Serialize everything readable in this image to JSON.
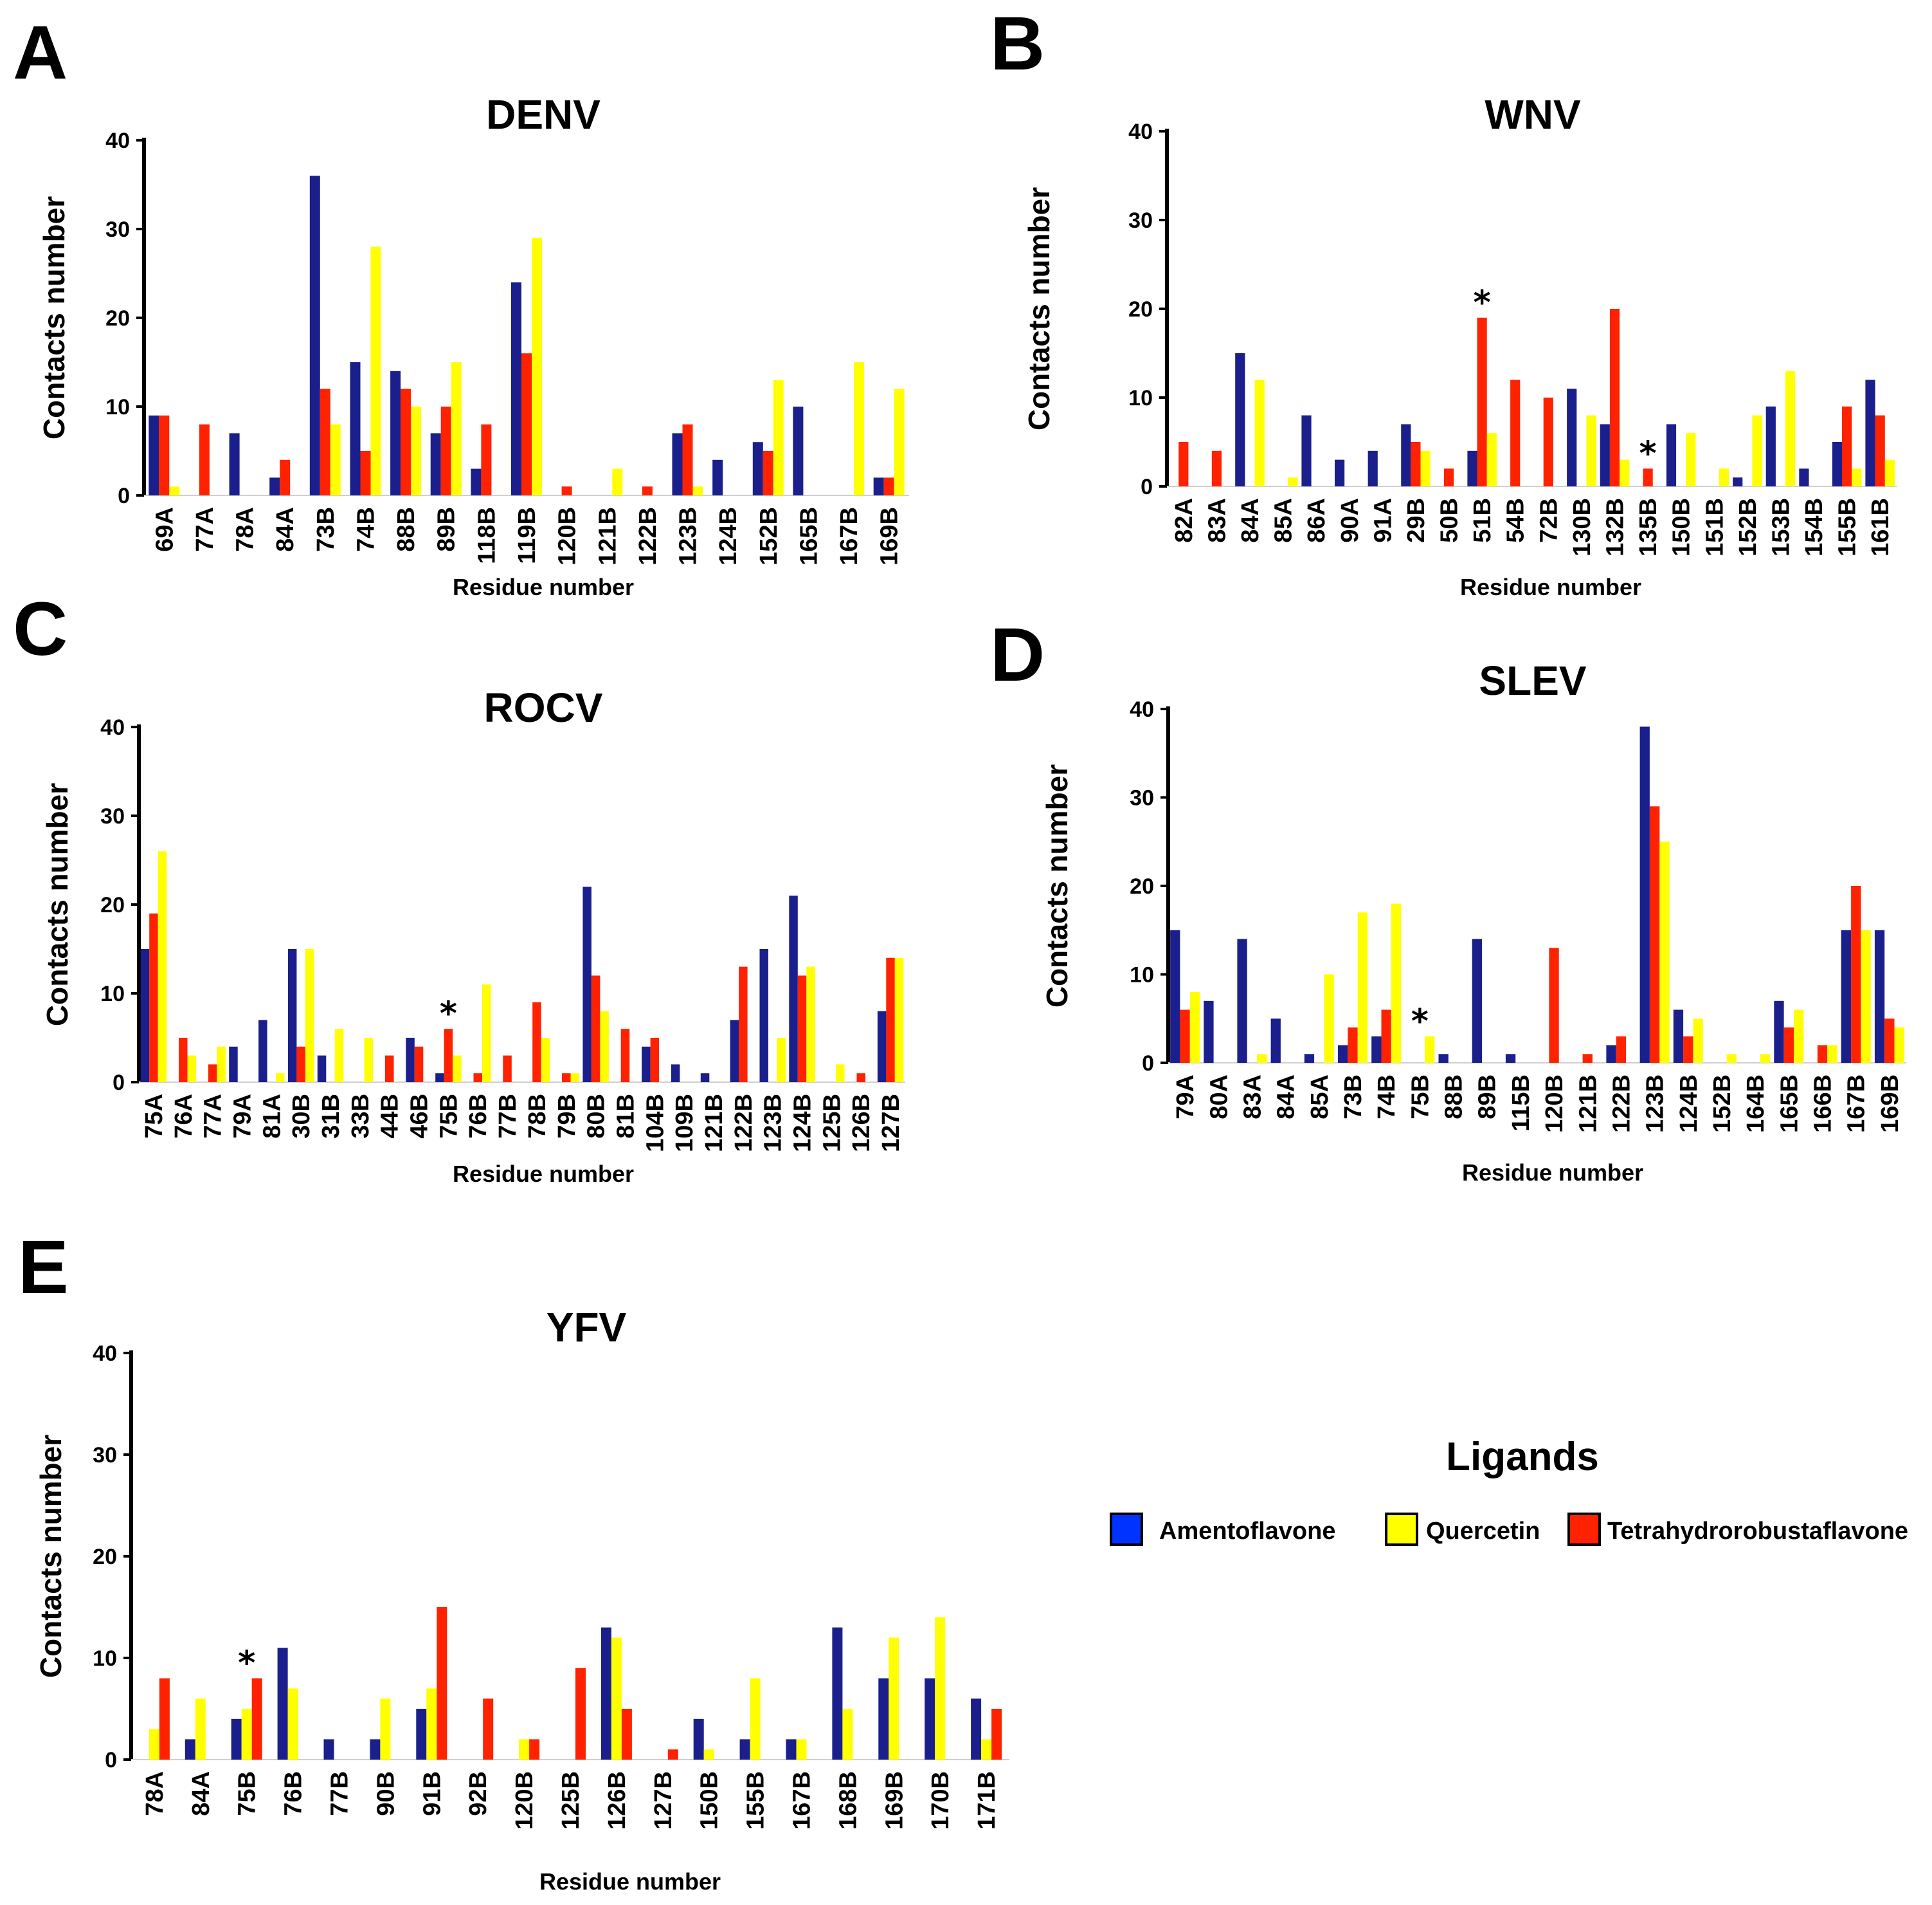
{
  "figure": {
    "legend": {
      "title": "Ligands",
      "items": [
        {
          "name": "Amentoflavone",
          "color": "#0033ff"
        },
        {
          "name": "Quercetin",
          "color": "#ffff00"
        },
        {
          "name": "Tetrahydrorobustaflavone",
          "color": "#ff2200"
        }
      ]
    }
  },
  "chart_data": [
    {
      "panel": "A",
      "type": "bar",
      "title": "DENV",
      "xlabel": "Residue number",
      "ylabel": "Contacts number",
      "ylim": [
        0,
        40
      ],
      "yticks": [
        0,
        10,
        20,
        30,
        40
      ],
      "categories": [
        "69A",
        "77A",
        "78A",
        "84A",
        "73B",
        "74B",
        "88B",
        "89B",
        "118B",
        "119B",
        "120B",
        "121B",
        "122B",
        "123B",
        "124B",
        "152B",
        "165B",
        "167B",
        "169B"
      ],
      "series_order": [
        "Amentoflavone",
        "Tetrahydrorobustaflavone",
        "Quercetin"
      ],
      "series": [
        {
          "name": "Amentoflavone",
          "color": "#1a1f8c",
          "values": [
            9,
            0,
            7,
            2,
            36,
            15,
            14,
            7,
            3,
            24,
            0,
            0,
            0,
            7,
            4,
            6,
            10,
            0,
            2
          ]
        },
        {
          "name": "Tetrahydrorobustaflavone",
          "color": "#ff2200",
          "values": [
            9,
            8,
            0,
            4,
            12,
            5,
            12,
            10,
            8,
            16,
            1,
            0,
            1,
            8,
            0,
            5,
            0,
            0,
            2
          ]
        },
        {
          "name": "Quercetin",
          "color": "#ffff00",
          "values": [
            1,
            0,
            0,
            0,
            8,
            28,
            10,
            15,
            0,
            29,
            0,
            3,
            0,
            1,
            0,
            13,
            0,
            15,
            12
          ]
        }
      ],
      "annotations": []
    },
    {
      "panel": "B",
      "type": "bar",
      "title": "WNV",
      "xlabel": "Residue number",
      "ylabel": "Contacts number",
      "ylim": [
        0,
        40
      ],
      "yticks": [
        0,
        10,
        20,
        30,
        40
      ],
      "categories": [
        "82A",
        "83A",
        "84A",
        "85A",
        "86A",
        "90A",
        "91A",
        "29B",
        "50B",
        "51B",
        "54B",
        "72B",
        "130B",
        "132B",
        "135B",
        "150B",
        "151B",
        "152B",
        "153B",
        "154B",
        "155B",
        "161B"
      ],
      "series_order": [
        "Amentoflavone",
        "Tetrahydrorobustaflavone",
        "Quercetin"
      ],
      "series": [
        {
          "name": "Amentoflavone",
          "color": "#1a1f8c",
          "values": [
            0,
            0,
            15,
            0,
            8,
            3,
            4,
            7,
            0,
            4,
            0,
            0,
            11,
            7,
            0,
            7,
            0,
            1,
            9,
            2,
            5,
            12
          ]
        },
        {
          "name": "Tetrahydrorobustaflavone",
          "color": "#ff2200",
          "values": [
            5,
            4,
            0,
            0,
            0,
            0,
            0,
            5,
            2,
            19,
            12,
            10,
            0,
            20,
            2,
            0,
            0,
            0,
            0,
            0,
            9,
            8
          ]
        },
        {
          "name": "Quercetin",
          "color": "#ffff00",
          "values": [
            0,
            0,
            12,
            1,
            0,
            0,
            0,
            4,
            0,
            6,
            0,
            0,
            8,
            3,
            0,
            6,
            2,
            8,
            13,
            0,
            2,
            3
          ]
        }
      ],
      "annotations": [
        {
          "category": "51B",
          "text": "*"
        },
        {
          "category": "135B",
          "text": "*"
        }
      ]
    },
    {
      "panel": "C",
      "type": "bar",
      "title": "ROCV",
      "xlabel": "Residue number",
      "ylabel": "Contacts number",
      "ylim": [
        0,
        40
      ],
      "yticks": [
        0,
        10,
        20,
        30,
        40
      ],
      "categories": [
        "75A",
        "76A",
        "77A",
        "79A",
        "81A",
        "30B",
        "31B",
        "33B",
        "44B",
        "46B",
        "75B",
        "76B",
        "77B",
        "78B",
        "79B",
        "80B",
        "81B",
        "104B",
        "109B",
        "121B",
        "122B",
        "123B",
        "124B",
        "125B",
        "126B",
        "127B"
      ],
      "series_order": [
        "Amentoflavone",
        "Tetrahydrorobustaflavone",
        "Quercetin"
      ],
      "series": [
        {
          "name": "Amentoflavone",
          "color": "#1a1f8c",
          "values": [
            15,
            0,
            0,
            4,
            7,
            15,
            3,
            0,
            0,
            5,
            1,
            0,
            0,
            0,
            0,
            22,
            0,
            4,
            2,
            1,
            7,
            15,
            21,
            0,
            0,
            8
          ]
        },
        {
          "name": "Tetrahydrorobustaflavone",
          "color": "#ff2200",
          "values": [
            19,
            5,
            2,
            0,
            0,
            4,
            0,
            0,
            3,
            4,
            6,
            1,
            3,
            9,
            1,
            12,
            6,
            5,
            0,
            0,
            13,
            0,
            12,
            0,
            1,
            14
          ]
        },
        {
          "name": "Quercetin",
          "color": "#ffff00",
          "values": [
            26,
            3,
            4,
            0,
            1,
            15,
            6,
            5,
            0,
            0,
            3,
            11,
            0,
            5,
            1,
            8,
            0,
            0,
            0,
            0,
            0,
            5,
            13,
            2,
            0,
            14
          ]
        }
      ],
      "annotations": [
        {
          "category": "75B",
          "text": "*"
        }
      ]
    },
    {
      "panel": "D",
      "type": "bar",
      "title": "SLEV",
      "xlabel": "Residue number",
      "ylabel": "Contacts number",
      "ylim": [
        0,
        40
      ],
      "yticks": [
        0,
        10,
        20,
        30,
        40
      ],
      "categories": [
        "79A",
        "80A",
        "83A",
        "84A",
        "85A",
        "73B",
        "74B",
        "75B",
        "88B",
        "89B",
        "115B",
        "120B",
        "121B",
        "122B",
        "123B",
        "124B",
        "152B",
        "164B",
        "165B",
        "166B",
        "167B",
        "169B"
      ],
      "series_order": [
        "Amentoflavone",
        "Tetrahydrorobustaflavone",
        "Quercetin"
      ],
      "series": [
        {
          "name": "Amentoflavone",
          "color": "#1a1f8c",
          "values": [
            15,
            7,
            14,
            5,
            1,
            2,
            3,
            0,
            1,
            14,
            1,
            0,
            0,
            2,
            38,
            6,
            0,
            0,
            7,
            0,
            15,
            15
          ]
        },
        {
          "name": "Tetrahydrorobustaflavone",
          "color": "#ff2200",
          "values": [
            6,
            0,
            0,
            0,
            0,
            4,
            6,
            0,
            0,
            0,
            0,
            13,
            1,
            3,
            29,
            3,
            0,
            0,
            4,
            2,
            20,
            5
          ]
        },
        {
          "name": "Quercetin",
          "color": "#ffff00",
          "values": [
            8,
            0,
            1,
            0,
            10,
            17,
            18,
            3,
            0,
            0,
            0,
            0,
            0,
            0,
            25,
            5,
            1,
            1,
            6,
            2,
            15,
            4
          ]
        }
      ],
      "annotations": [
        {
          "category": "75B",
          "text": "*"
        }
      ]
    },
    {
      "panel": "E",
      "type": "bar",
      "title": "YFV",
      "xlabel": "Residue number",
      "ylabel": "Contacts number",
      "ylim": [
        0,
        40
      ],
      "yticks": [
        0,
        10,
        20,
        30,
        40
      ],
      "categories": [
        "78A",
        "84A",
        "75B",
        "76B",
        "77B",
        "90B",
        "91B",
        "92B",
        "120B",
        "125B",
        "126B",
        "127B",
        "150B",
        "155B",
        "167B",
        "168B",
        "169B",
        "170B",
        "171B"
      ],
      "series_order": [
        "Amentoflavone",
        "Quercetin",
        "Tetrahydrorobustaflavone"
      ],
      "series": [
        {
          "name": "Amentoflavone",
          "color": "#1a1f8c",
          "values": [
            0,
            2,
            4,
            11,
            2,
            2,
            5,
            0,
            0,
            0,
            13,
            0,
            4,
            2,
            2,
            13,
            8,
            8,
            6
          ]
        },
        {
          "name": "Quercetin",
          "color": "#ffff00",
          "values": [
            3,
            6,
            5,
            7,
            0,
            6,
            7,
            0,
            2,
            0,
            12,
            0,
            1,
            8,
            2,
            5,
            12,
            14,
            2
          ]
        },
        {
          "name": "Tetrahydrorobustaflavone",
          "color": "#ff2200",
          "values": [
            8,
            0,
            8,
            0,
            0,
            0,
            15,
            6,
            2,
            9,
            5,
            1,
            0,
            0,
            0,
            0,
            0,
            0,
            5
          ]
        }
      ],
      "annotations": [
        {
          "category": "75B",
          "text": "*"
        }
      ]
    }
  ]
}
